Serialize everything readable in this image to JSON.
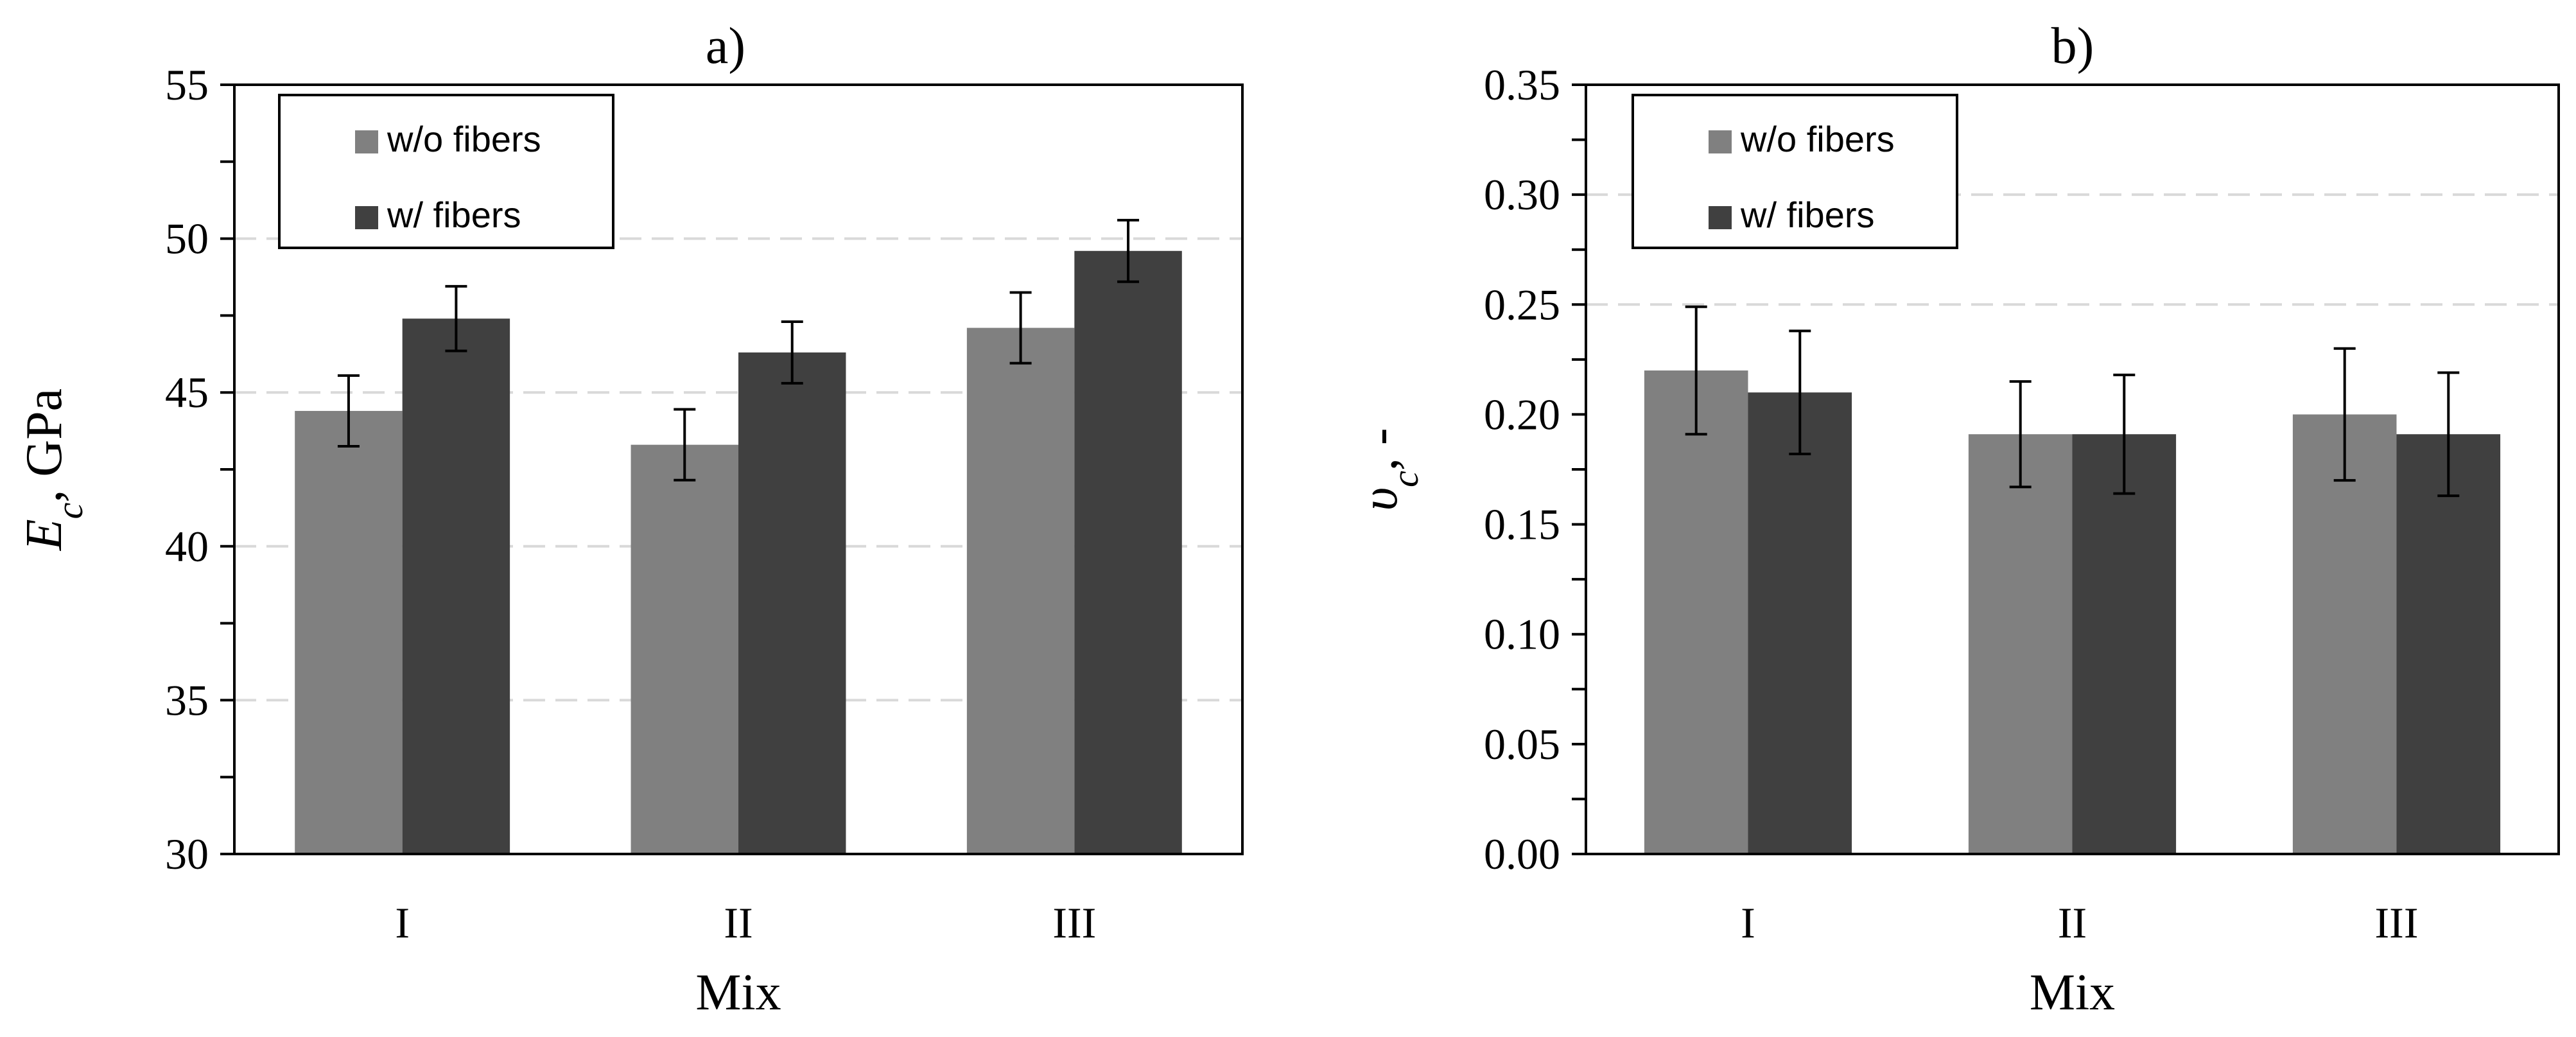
{
  "chart_data": [
    {
      "type": "bar",
      "title": "a)",
      "xlabel": "Mix",
      "ylabel_main": "E",
      "ylabel_sub": "c",
      "ylabel_rest": ", GPa",
      "categories": [
        "I",
        "II",
        "III"
      ],
      "ylim": [
        30,
        55
      ],
      "major_step": 5,
      "minor_step": 2.5,
      "tick_decimals": 0,
      "tick_labels": [
        "30",
        "35",
        "40",
        "45",
        "50",
        "55"
      ],
      "gridlines": [
        35,
        40,
        45,
        50
      ],
      "legend_position": "top-left",
      "series": [
        {
          "name": "w/o fibers",
          "color": "#808080",
          "values": [
            44.4,
            43.3,
            47.1
          ],
          "errors": [
            1.15,
            1.15,
            1.15
          ]
        },
        {
          "name": "w/ fibers",
          "color": "#404040",
          "values": [
            47.4,
            46.3,
            49.6
          ],
          "errors": [
            1.05,
            1.0,
            1.0
          ]
        }
      ]
    },
    {
      "type": "bar",
      "title": "b)",
      "xlabel": "Mix",
      "ylabel_main": "υ",
      "ylabel_sub": "c",
      "ylabel_rest": ", -",
      "categories": [
        "I",
        "II",
        "III"
      ],
      "ylim": [
        0,
        0.35
      ],
      "major_step": 0.05,
      "minor_step": 0.025,
      "tick_decimals": 2,
      "tick_labels": [
        "0.00",
        "0.05",
        "0.10",
        "0.15",
        "0.20",
        "0.25",
        "0.30",
        "0.35"
      ],
      "gridlines": [
        0.25,
        0.3
      ],
      "legend_position": "top-left",
      "series": [
        {
          "name": "w/o fibers",
          "color": "#808080",
          "values": [
            0.22,
            0.191,
            0.2
          ],
          "errors": [
            0.029,
            0.024,
            0.03
          ]
        },
        {
          "name": "w/ fibers",
          "color": "#404040",
          "values": [
            0.21,
            0.191,
            0.191
          ],
          "errors": [
            0.028,
            0.027,
            0.028
          ]
        }
      ]
    }
  ]
}
